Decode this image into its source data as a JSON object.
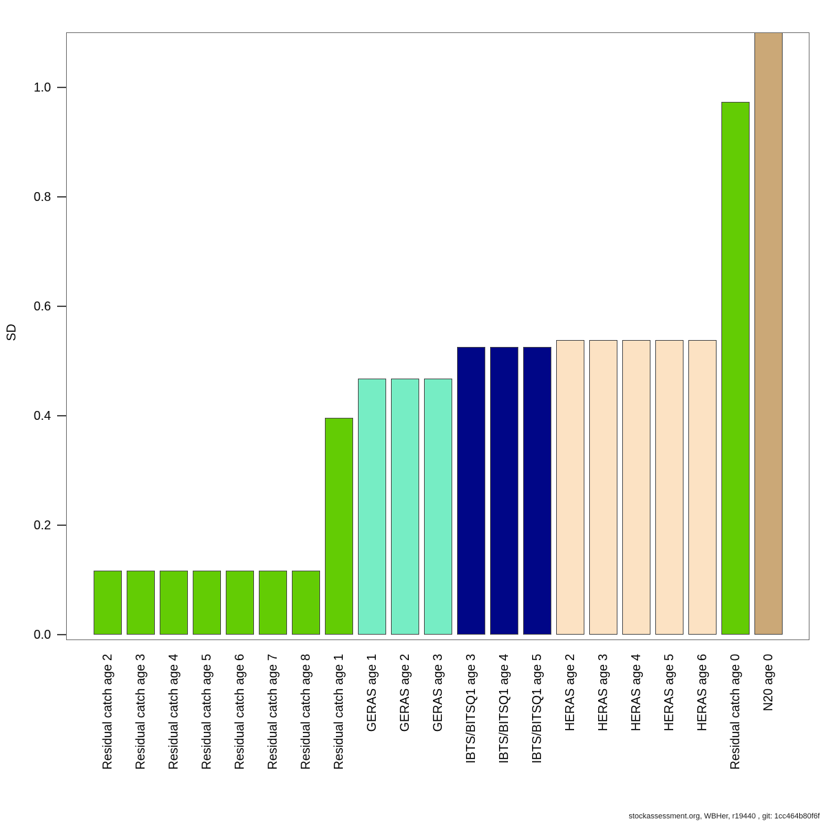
{
  "chart_data": {
    "type": "bar",
    "title": "",
    "xlabel": "",
    "ylabel": "SD",
    "ylim": [
      0,
      1.1
    ],
    "yticks": [
      {
        "label": "0.0",
        "value": 0.0
      },
      {
        "label": "0.2",
        "value": 0.2
      },
      {
        "label": "0.4",
        "value": 0.4
      },
      {
        "label": "0.6",
        "value": 0.6
      },
      {
        "label": "0.8",
        "value": 0.8
      },
      {
        "label": "1.0",
        "value": 1.0
      }
    ],
    "grid": false,
    "legend_position": "none",
    "bars": [
      {
        "label": "Residual catch age 2",
        "value": 0.117,
        "group": "residual-catch",
        "color": "#63CC04",
        "clipped": false
      },
      {
        "label": "Residual catch age 3",
        "value": 0.117,
        "group": "residual-catch",
        "color": "#63CC04",
        "clipped": false
      },
      {
        "label": "Residual catch age 4",
        "value": 0.117,
        "group": "residual-catch",
        "color": "#63CC04",
        "clipped": false
      },
      {
        "label": "Residual catch age 5",
        "value": 0.117,
        "group": "residual-catch",
        "color": "#63CC04",
        "clipped": false
      },
      {
        "label": "Residual catch age 6",
        "value": 0.117,
        "group": "residual-catch",
        "color": "#63CC04",
        "clipped": false
      },
      {
        "label": "Residual catch age 7",
        "value": 0.117,
        "group": "residual-catch",
        "color": "#63CC04",
        "clipped": false
      },
      {
        "label": "Residual catch age 8",
        "value": 0.117,
        "group": "residual-catch",
        "color": "#63CC04",
        "clipped": false
      },
      {
        "label": "Residual catch age 1",
        "value": 0.396,
        "group": "residual-catch",
        "color": "#63CC04",
        "clipped": false
      },
      {
        "label": "GERAS age 1",
        "value": 0.468,
        "group": "geras",
        "color": "#76EDC4",
        "clipped": false
      },
      {
        "label": "GERAS age 2",
        "value": 0.468,
        "group": "geras",
        "color": "#76EDC4",
        "clipped": false
      },
      {
        "label": "GERAS age 3",
        "value": 0.468,
        "group": "geras",
        "color": "#76EDC4",
        "clipped": false
      },
      {
        "label": "IBTS/BITSQ1 age 3",
        "value": 0.526,
        "group": "ibts-bitsq1",
        "color": "#000687",
        "clipped": false
      },
      {
        "label": "IBTS/BITSQ1 age 4",
        "value": 0.526,
        "group": "ibts-bitsq1",
        "color": "#000687",
        "clipped": false
      },
      {
        "label": "IBTS/BITSQ1 age 5",
        "value": 0.526,
        "group": "ibts-bitsq1",
        "color": "#000687",
        "clipped": false
      },
      {
        "label": "HERAS age 2",
        "value": 0.538,
        "group": "heras",
        "color": "#FCE2C3",
        "clipped": false
      },
      {
        "label": "HERAS age 3",
        "value": 0.538,
        "group": "heras",
        "color": "#FCE2C3",
        "clipped": false
      },
      {
        "label": "HERAS age 4",
        "value": 0.538,
        "group": "heras",
        "color": "#FCE2C3",
        "clipped": false
      },
      {
        "label": "HERAS age 5",
        "value": 0.538,
        "group": "heras",
        "color": "#FCE2C3",
        "clipped": false
      },
      {
        "label": "HERAS age 6",
        "value": 0.538,
        "group": "heras",
        "color": "#FCE2C3",
        "clipped": false
      },
      {
        "label": "Residual catch age 0",
        "value": 0.974,
        "group": "residual-catch",
        "color": "#63CC04",
        "clipped": false
      },
      {
        "label": "N20 age 0",
        "value": 1.1,
        "group": "n20",
        "color": "#CBA877",
        "clipped": true
      }
    ]
  },
  "footer": {
    "credit": "stockassessment.org, WBHer, r19440 , git: 1cc464b80f6f"
  },
  "colors": {
    "background": "#ffffff",
    "frame": "#6e6e6e",
    "bar_border": "#4a4a4a",
    "tick": "#4a4a4a",
    "text": "#000000"
  }
}
